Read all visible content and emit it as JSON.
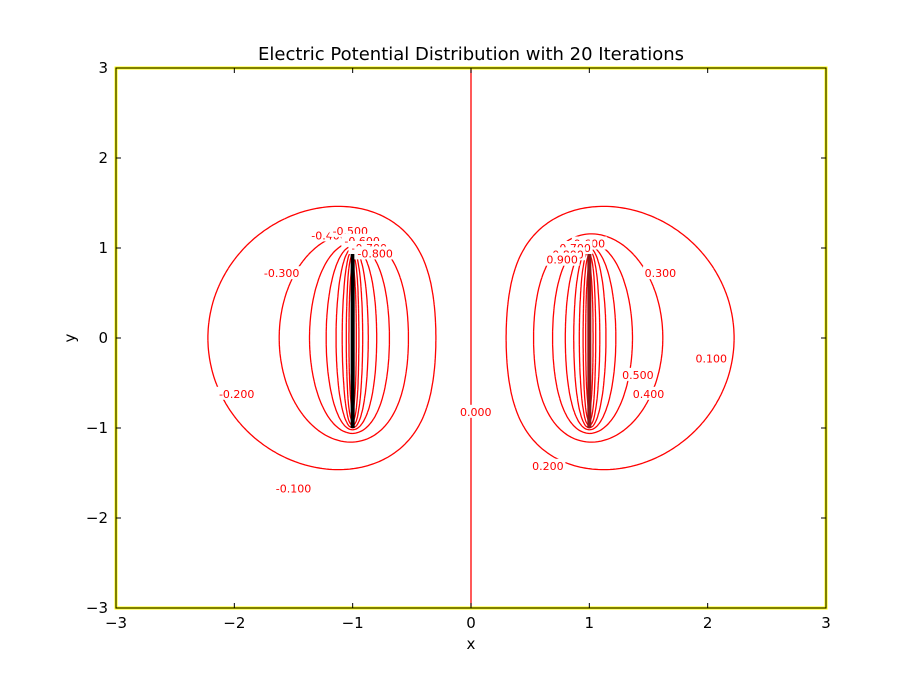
{
  "chart_data": {
    "type": "contour",
    "title": "Electric Potential Distribution with 20 Iterations",
    "xlabel": "x",
    "ylabel": "y",
    "xlim": [
      -3,
      3
    ],
    "ylim": [
      -3,
      3
    ],
    "xticks": [
      -3,
      -2,
      -1,
      0,
      1,
      2,
      3
    ],
    "yticks": [
      -3,
      -2,
      -1,
      0,
      1,
      2,
      3
    ],
    "grid": false,
    "colors": {
      "contour": "#ff0000",
      "plates": "#000000",
      "boundary": "#ffff00"
    },
    "plates": [
      {
        "x": -1,
        "y_range": [
          -1,
          1
        ],
        "potential": -1
      },
      {
        "x": 1,
        "y_range": [
          -1,
          1
        ],
        "potential": 1
      }
    ],
    "contour_levels": {
      "negative": [
        -0.1,
        -0.2,
        -0.3,
        -0.4,
        -0.5,
        -0.6,
        -0.7,
        -0.8,
        -0.9,
        -1.0
      ],
      "zero": 0.0,
      "positive": [
        0.1,
        0.2,
        0.3,
        0.4,
        0.5,
        0.6,
        0.7,
        0.8,
        0.9,
        1.0
      ]
    },
    "contour_labels": [
      {
        "text": "-0.100",
        "x": -1.5,
        "y": -1.67
      },
      {
        "text": "-0.200",
        "x": -1.98,
        "y": -0.62
      },
      {
        "text": "-0.300",
        "x": -1.6,
        "y": 0.72
      },
      {
        "text": "-0.400",
        "x": -1.2,
        "y": 1.14
      },
      {
        "text": "-0.500",
        "x": -1.02,
        "y": 1.19
      },
      {
        "text": "-0.600",
        "x": -0.92,
        "y": 1.08
      },
      {
        "text": "-0.700",
        "x": -0.86,
        "y": 1.0
      },
      {
        "text": "-0.800",
        "x": -0.81,
        "y": 0.94
      },
      {
        "text": "0.000",
        "x": 0.04,
        "y": -0.82
      },
      {
        "text": "0.100",
        "x": 2.03,
        "y": -0.23
      },
      {
        "text": "0.200",
        "x": 0.65,
        "y": -1.42
      },
      {
        "text": "0.300",
        "x": 1.6,
        "y": 0.72
      },
      {
        "text": "0.400",
        "x": 1.5,
        "y": -0.62
      },
      {
        "text": "0.500",
        "x": 1.41,
        "y": -0.41
      },
      {
        "text": "0.600",
        "x": 1.0,
        "y": 1.05
      },
      {
        "text": "0.700",
        "x": 0.88,
        "y": 1.0
      },
      {
        "text": "0.800",
        "x": 0.82,
        "y": 0.93
      },
      {
        "text": "0.900",
        "x": 0.77,
        "y": 0.87
      }
    ]
  }
}
